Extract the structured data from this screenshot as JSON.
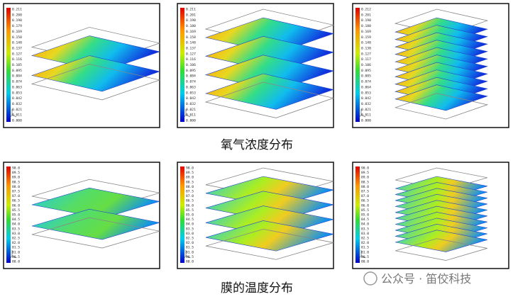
{
  "captions": [
    "氧气浓度分布",
    "膜的温度分布"
  ],
  "watermark": "公众号 · 笛佼科技",
  "panels": [
    {
      "legend": [
        "0.211",
        "0.200",
        "0.190",
        "0.179",
        "0.169",
        "0.158",
        "0.148",
        "0.137",
        "0.127",
        "0.116",
        "0.105",
        "0.095",
        "0.084",
        "0.074",
        "0.063",
        "0.053",
        "0.042",
        "0.032",
        "0.021",
        "0.011",
        "0.000"
      ]
    },
    {
      "legend": [
        "0.211",
        "0.201",
        "0.190",
        "0.180",
        "0.169",
        "0.158",
        "0.148",
        "0.137",
        "0.127",
        "0.116",
        "0.106",
        "0.095",
        "0.084",
        "0.074",
        "0.063",
        "0.053",
        "0.042",
        "0.032",
        "0.021",
        "0.011",
        "0.000"
      ]
    },
    {
      "legend": [
        "0.212",
        "0.201",
        "0.190",
        "0.180",
        "0.169",
        "0.159",
        "0.148",
        "0.138",
        "0.127",
        "0.117",
        "0.106",
        "0.095",
        "0.085",
        "0.074",
        "0.064",
        "0.053",
        "0.042",
        "0.032",
        "0.021",
        "0.011",
        "0.000"
      ]
    },
    {
      "legend": [
        "90.0",
        "89.5",
        "89.0",
        "88.5",
        "88.0",
        "87.5",
        "87.0",
        "86.5",
        "86.0",
        "85.5",
        "85.0",
        "84.5",
        "84.0",
        "83.5",
        "83.0",
        "82.5",
        "82.0",
        "81.5",
        "81.0",
        "80.5",
        "80.0"
      ]
    },
    {
      "legend": [
        "90.0",
        "89.5",
        "89.0",
        "88.5",
        "88.0",
        "87.5",
        "87.0",
        "86.5",
        "86.0",
        "85.5",
        "85.0",
        "84.5",
        "84.0",
        "83.5",
        "83.0",
        "82.5",
        "82.0",
        "81.5",
        "81.0",
        "80.5",
        "80.0"
      ]
    },
    {
      "legend": [
        "90.0",
        "89.5",
        "89.0",
        "88.5",
        "88.0",
        "87.5",
        "87.0",
        "86.5",
        "86.0",
        "85.5",
        "85.0",
        "84.5",
        "84.0",
        "83.5",
        "83.0",
        "82.5",
        "82.0",
        "81.5",
        "81.0",
        "80.5",
        "80.0"
      ]
    }
  ]
}
